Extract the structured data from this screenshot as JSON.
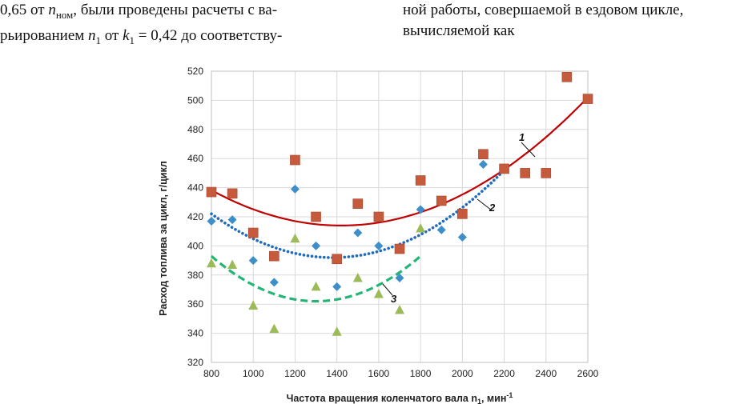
{
  "text": {
    "left_line1_a": "0,65 от ",
    "left_line1_n": "n",
    "left_line1_sub": "ном",
    "left_line1_b": ", были проведены расчеты с ва-",
    "left_line2_a": "рьированием ",
    "left_line2_n": "n",
    "left_line2_sub": "1",
    "left_line2_b": " от ",
    "left_line2_k": "k",
    "left_line2_ksub": "1",
    "left_line2_c": " = 0,42 до соответству-",
    "right_line1": "ной работы, совершаемой в ездовом цикле,",
    "right_line2": "вычисляемой как"
  },
  "colors": {
    "series1": "#c55a3c",
    "curve1": "#c00000",
    "series2": "#3d8ec9",
    "curve2": "#1f6bbd",
    "series3": "#9bbb59",
    "curve3": "#22b573",
    "grid": "#d9d9d9"
  },
  "chart_data": {
    "type": "scatter",
    "title": "",
    "xlabel": "Частота вращения коленчатого вала n",
    "xlabel_sub": "1",
    "xlabel_unit": ", мин",
    "xlabel_sup": "-1",
    "ylabel": "Расход топлива за цикл, г/цикл",
    "xlim": [
      800,
      2600
    ],
    "ylim": [
      320,
      520
    ],
    "xticks": [
      800,
      1000,
      1200,
      1400,
      1600,
      1800,
      2000,
      2200,
      2400,
      2600
    ],
    "yticks": [
      320,
      340,
      360,
      380,
      400,
      420,
      440,
      460,
      480,
      500,
      520
    ],
    "grid": true,
    "series": [
      {
        "name": "1",
        "marker": "square",
        "x": [
          800,
          900,
          1000,
          1100,
          1200,
          1300,
          1400,
          1500,
          1600,
          1700,
          1800,
          1900,
          2000,
          2100,
          2200,
          2300,
          2400,
          2500,
          2600
        ],
        "y": [
          437,
          436,
          409,
          393,
          459,
          420,
          391,
          429,
          420,
          398,
          445,
          431,
          422,
          463,
          453,
          450,
          450,
          516,
          501
        ]
      },
      {
        "name": "2",
        "marker": "diamond",
        "x": [
          800,
          900,
          1000,
          1100,
          1200,
          1300,
          1400,
          1500,
          1600,
          1700,
          1800,
          1900,
          2000,
          2100
        ],
        "y": [
          417,
          418,
          390,
          375,
          439,
          400,
          372,
          409,
          400,
          378,
          425,
          411,
          406,
          456
        ]
      },
      {
        "name": "3",
        "marker": "triangle",
        "x": [
          800,
          900,
          1000,
          1100,
          1200,
          1300,
          1400,
          1500,
          1600,
          1700,
          1800
        ],
        "y": [
          388,
          387,
          359,
          343,
          405,
          372,
          341,
          378,
          367,
          356,
          412
        ]
      }
    ],
    "trendlines": [
      {
        "name": "1",
        "style": "solid",
        "label": "1",
        "x_range": [
          800,
          2600
        ],
        "vertex": [
          1420,
          414
        ],
        "end_value": [
          2600,
          502
        ]
      },
      {
        "name": "2",
        "style": "dotted",
        "label": "2",
        "x_range": [
          800,
          2200
        ],
        "vertex": [
          1380,
          392
        ],
        "end_value": [
          2200,
          452
        ]
      },
      {
        "name": "3",
        "style": "dashed",
        "label": "3",
        "x_range": [
          800,
          1800
        ],
        "vertex": [
          1300,
          362
        ],
        "end_value": [
          1800,
          393
        ]
      }
    ]
  }
}
